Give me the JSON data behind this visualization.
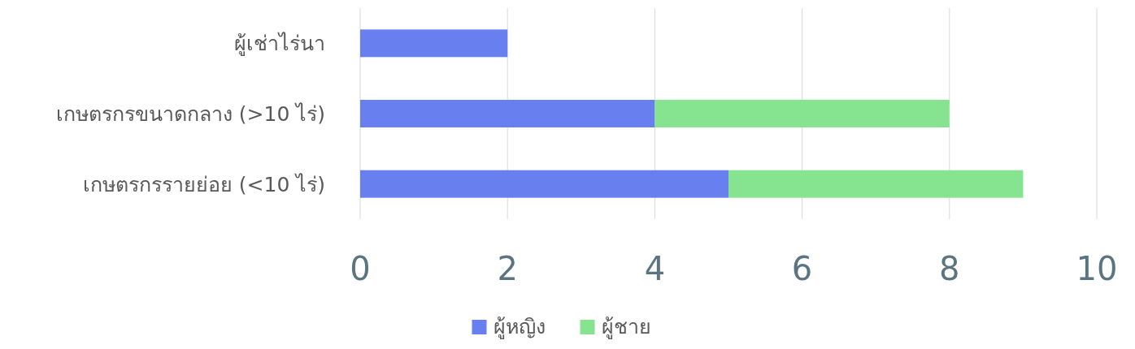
{
  "chart_data": {
    "type": "bar",
    "orientation": "horizontal",
    "stacked": true,
    "categories": [
      "ผู้เช่าไร่นา",
      "เกษตรกรขนาดกลาง (>10 ไร่)",
      "เกษตรกรรายย่อย (<10 ไร่)"
    ],
    "series": [
      {
        "name": "ผู้หญิง",
        "color": "#687ff0",
        "values": [
          2,
          4,
          5
        ]
      },
      {
        "name": "ผู้ชาย",
        "color": "#86e490",
        "values": [
          null,
          4,
          4
        ]
      }
    ],
    "xlim": [
      0,
      10
    ],
    "xticks": [
      0,
      2,
      4,
      6,
      8,
      10
    ],
    "grid": "x",
    "legend": "bottom"
  }
}
